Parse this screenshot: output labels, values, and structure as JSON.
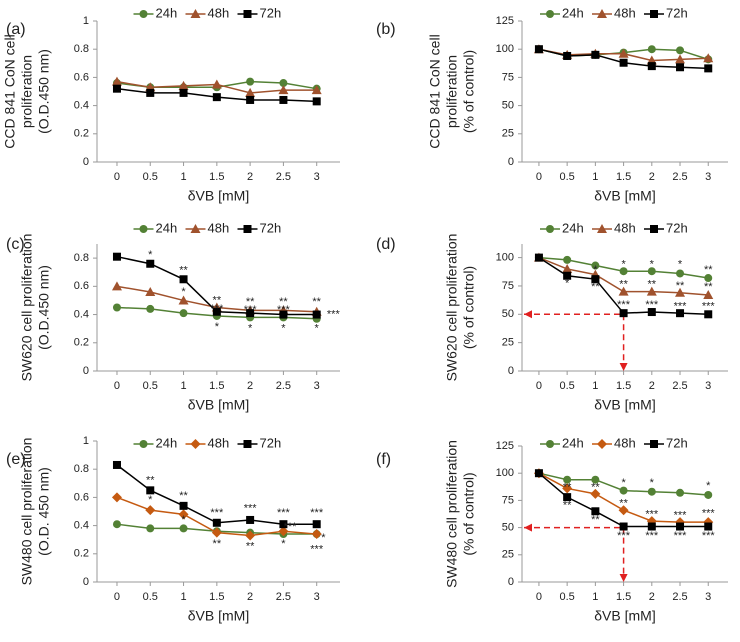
{
  "chart_data": [
    {
      "type": "line",
      "panel_label": "(a)",
      "ylabel": [
        "CCD 841 CoN cell",
        "proliferation",
        "(O.D.450 nm)"
      ],
      "xlabel": "δVB [mM]",
      "x": [
        0,
        0.5,
        1,
        1.5,
        2,
        2.5,
        3
      ],
      "xticks": [
        0,
        0.5,
        1,
        1.5,
        2,
        2.5,
        3
      ],
      "xlim": [
        -0.3,
        3.35
      ],
      "ylim": [
        0,
        1
      ],
      "yticks": [
        0,
        0.2,
        0.4,
        0.6,
        0.8,
        1
      ],
      "series": [
        {
          "name": "24h",
          "color": "#538135",
          "marker": "circle",
          "values": [
            0.56,
            0.53,
            0.53,
            0.53,
            0.57,
            0.56,
            0.52
          ]
        },
        {
          "name": "48h",
          "color": "#a0522d",
          "marker": "triangle",
          "values": [
            0.57,
            0.53,
            0.54,
            0.55,
            0.49,
            0.51,
            0.51
          ]
        },
        {
          "name": "72h",
          "color": "#000000",
          "marker": "square",
          "values": [
            0.52,
            0.49,
            0.49,
            0.46,
            0.44,
            0.44,
            0.43
          ]
        }
      ]
    },
    {
      "type": "line",
      "panel_label": "(b)",
      "ylabel": [
        "CCD 841 CoN cell",
        "proliferation",
        "(% of control)"
      ],
      "xlabel": "δVB [mM]",
      "x": [
        0,
        0.5,
        1,
        1.5,
        2,
        2.5,
        3
      ],
      "xticks": [
        0,
        0.5,
        1,
        1.5,
        2,
        2.5,
        3
      ],
      "xlim": [
        -0.3,
        3.35
      ],
      "ylim": [
        0,
        125
      ],
      "yticks": [
        0,
        25,
        50,
        75,
        100,
        125
      ],
      "series": [
        {
          "name": "24h",
          "color": "#538135",
          "marker": "circle",
          "values": [
            100,
            94,
            95,
            97,
            100,
            99,
            91
          ]
        },
        {
          "name": "48h",
          "color": "#a0522d",
          "marker": "triangle",
          "values": [
            100,
            95,
            96,
            96,
            90,
            91,
            92
          ]
        },
        {
          "name": "72h",
          "color": "#000000",
          "marker": "square",
          "values": [
            100,
            94,
            95,
            88,
            85,
            84,
            83
          ]
        }
      ]
    },
    {
      "type": "line",
      "panel_label": "(c)",
      "ylabel": [
        "SW620 cell proliferation",
        "(O.D.450 nm)"
      ],
      "xlabel": "δVB [mM]",
      "x": [
        0,
        0.5,
        1,
        1.5,
        2,
        2.5,
        3
      ],
      "xticks": [
        0,
        0.5,
        1,
        1.5,
        2,
        2.5,
        3
      ],
      "xlim": [
        -0.3,
        3.35
      ],
      "ylim": [
        0,
        0.9
      ],
      "yticks": [
        0,
        0.2,
        0.4,
        0.6,
        0.8
      ],
      "series": [
        {
          "name": "24h",
          "color": "#538135",
          "marker": "circle",
          "values": [
            0.45,
            0.44,
            0.41,
            0.39,
            0.38,
            0.38,
            0.37
          ]
        },
        {
          "name": "48h",
          "color": "#a0522d",
          "marker": "triangle",
          "values": [
            0.6,
            0.56,
            0.5,
            0.45,
            0.43,
            0.43,
            0.42
          ]
        },
        {
          "name": "72h",
          "color": "#000000",
          "marker": "square",
          "values": [
            0.81,
            0.76,
            0.65,
            0.42,
            0.41,
            0.4,
            0.4
          ]
        }
      ],
      "annotations": [
        {
          "text": "*",
          "x": 0.5,
          "y": 0.82
        },
        {
          "text": "**",
          "x": 1,
          "y": 0.71
        },
        {
          "text": "*",
          "x": 1,
          "y": 0.56
        },
        {
          "text": "**",
          "x": 1.5,
          "y": 0.5
        },
        {
          "text": "***",
          "x": 1.5,
          "y": 0.44
        },
        {
          "text": "*",
          "x": 1.5,
          "y": 0.31
        },
        {
          "text": "**",
          "x": 2,
          "y": 0.49
        },
        {
          "text": "***",
          "x": 2,
          "y": 0.43
        },
        {
          "text": "*",
          "x": 2,
          "y": 0.3
        },
        {
          "text": "**",
          "x": 2.5,
          "y": 0.49
        },
        {
          "text": "***",
          "x": 2.5,
          "y": 0.43
        },
        {
          "text": "*",
          "x": 2.5,
          "y": 0.3
        },
        {
          "text": "**",
          "x": 3,
          "y": 0.49
        },
        {
          "text": "***",
          "x": 3.25,
          "y": 0.4
        },
        {
          "text": "*",
          "x": 3,
          "y": 0.3
        }
      ]
    },
    {
      "type": "line",
      "panel_label": "(d)",
      "ylabel": [
        "SW620 cell proliferation",
        "(% of control)"
      ],
      "xlabel": "δVB [mM]",
      "x": [
        0,
        0.5,
        1,
        1.5,
        2,
        2.5,
        3
      ],
      "xticks": [
        0,
        0.5,
        1,
        1.5,
        2,
        2.5,
        3
      ],
      "xlim": [
        -0.3,
        3.35
      ],
      "ylim": [
        0,
        112
      ],
      "yticks": [
        0,
        25,
        50,
        75,
        100
      ],
      "series": [
        {
          "name": "24h",
          "color": "#538135",
          "marker": "circle",
          "values": [
            100,
            98,
            93,
            88,
            88,
            86,
            82
          ]
        },
        {
          "name": "48h",
          "color": "#a0522d",
          "marker": "triangle",
          "values": [
            100,
            90,
            85,
            70,
            70,
            69,
            67
          ]
        },
        {
          "name": "72h",
          "color": "#000000",
          "marker": "square",
          "values": [
            100,
            84,
            81,
            51,
            52,
            51,
            50
          ]
        }
      ],
      "ref_line": {
        "x": 1.5,
        "y": 50,
        "color": "#e02020"
      },
      "annotations": [
        {
          "text": "*",
          "x": 1,
          "y": 89
        },
        {
          "text": "*",
          "x": 0.5,
          "y": 77
        },
        {
          "text": "**",
          "x": 1,
          "y": 74
        },
        {
          "text": "*",
          "x": 1.5,
          "y": 94
        },
        {
          "text": "*",
          "x": 2,
          "y": 94
        },
        {
          "text": "*",
          "x": 2.5,
          "y": 94
        },
        {
          "text": "**",
          "x": 3,
          "y": 89
        },
        {
          "text": "**",
          "x": 1.5,
          "y": 76
        },
        {
          "text": "**",
          "x": 2,
          "y": 76
        },
        {
          "text": "**",
          "x": 2.5,
          "y": 75
        },
        {
          "text": "**",
          "x": 3,
          "y": 74
        },
        {
          "text": "***",
          "x": 1.5,
          "y": 58
        },
        {
          "text": "***",
          "x": 2,
          "y": 58
        },
        {
          "text": "***",
          "x": 2.5,
          "y": 57
        },
        {
          "text": "***",
          "x": 3,
          "y": 57
        }
      ]
    },
    {
      "type": "line",
      "panel_label": "(e)",
      "ylabel": [
        "SW480 cell proliferation",
        "(O.D. 450 nm)"
      ],
      "xlabel": "δVB [mM]",
      "x": [
        0,
        0.5,
        1,
        1.5,
        2,
        2.5,
        3
      ],
      "xticks": [
        0,
        0.5,
        1,
        1.5,
        2,
        2.5,
        3
      ],
      "xlim": [
        -0.3,
        3.35
      ],
      "ylim": [
        0,
        1
      ],
      "yticks": [
        0,
        0.2,
        0.4,
        0.6,
        0.8,
        1
      ],
      "series": [
        {
          "name": "24h",
          "color": "#538135",
          "marker": "circle",
          "values": [
            0.41,
            0.38,
            0.38,
            0.36,
            0.35,
            0.34,
            0.34
          ]
        },
        {
          "name": "48h",
          "color": "#c55a11",
          "marker": "diamond",
          "values": [
            0.6,
            0.51,
            0.48,
            0.35,
            0.33,
            0.36,
            0.34
          ]
        },
        {
          "name": "72h",
          "color": "#000000",
          "marker": "square",
          "values": [
            0.83,
            0.65,
            0.54,
            0.42,
            0.44,
            0.41,
            0.41
          ]
        }
      ],
      "annotations": [
        {
          "text": "**",
          "x": 0.5,
          "y": 0.72
        },
        {
          "text": "*",
          "x": 0.5,
          "y": 0.58
        },
        {
          "text": "**",
          "x": 1,
          "y": 0.61
        },
        {
          "text": "*",
          "x": 1,
          "y": 0.44
        },
        {
          "text": "***",
          "x": 1.5,
          "y": 0.49
        },
        {
          "text": "**",
          "x": 1.5,
          "y": 0.27
        },
        {
          "text": "***",
          "x": 2,
          "y": 0.52
        },
        {
          "text": "**",
          "x": 2,
          "y": 0.25
        },
        {
          "text": "***",
          "x": 2.5,
          "y": 0.49
        },
        {
          "text": "***",
          "x": 2.6,
          "y": 0.39
        },
        {
          "text": "*",
          "x": 2.5,
          "y": 0.27
        },
        {
          "text": "***",
          "x": 3,
          "y": 0.49
        },
        {
          "text": "*",
          "x": 3.1,
          "y": 0.31
        },
        {
          "text": "***",
          "x": 3,
          "y": 0.23
        }
      ]
    },
    {
      "type": "line",
      "panel_label": "(f)",
      "ylabel": [
        "SW480 cell proliferation",
        "(% of control)"
      ],
      "xlabel": "δVB [mM]",
      "x": [
        0,
        0.5,
        1,
        1.5,
        2,
        2.5,
        3
      ],
      "xticks": [
        0,
        0.5,
        1,
        1.5,
        2,
        2.5,
        3
      ],
      "xlim": [
        -0.3,
        3.35
      ],
      "ylim": [
        0,
        125
      ],
      "yticks": [
        0,
        25,
        50,
        75,
        100,
        125
      ],
      "series": [
        {
          "name": "24h",
          "color": "#538135",
          "marker": "circle",
          "values": [
            100,
            94,
            94,
            84,
            83,
            82,
            80
          ]
        },
        {
          "name": "48h",
          "color": "#c55a11",
          "marker": "diamond",
          "values": [
            100,
            86,
            81,
            66,
            56,
            55,
            55
          ]
        },
        {
          "name": "72h",
          "color": "#000000",
          "marker": "square",
          "values": [
            100,
            78,
            65,
            51,
            51,
            51,
            51
          ]
        }
      ],
      "ref_line": {
        "x": 1.5,
        "y": 50,
        "color": "#e02020"
      },
      "annotations": [
        {
          "text": "**",
          "x": 0.5,
          "y": 87
        },
        {
          "text": "**",
          "x": 0.5,
          "y": 70
        },
        {
          "text": "**",
          "x": 1,
          "y": 87
        },
        {
          "text": "**",
          "x": 1,
          "y": 57
        },
        {
          "text": "*",
          "x": 1.5,
          "y": 91
        },
        {
          "text": "**",
          "x": 1.5,
          "y": 72
        },
        {
          "text": "***",
          "x": 1.5,
          "y": 42
        },
        {
          "text": "*",
          "x": 2,
          "y": 91
        },
        {
          "text": "***",
          "x": 2,
          "y": 62
        },
        {
          "text": "***",
          "x": 2,
          "y": 42
        },
        {
          "text": "***",
          "x": 2.5,
          "y": 61
        },
        {
          "text": "***",
          "x": 2.5,
          "y": 42
        },
        {
          "text": "*",
          "x": 3,
          "y": 88
        },
        {
          "text": "***",
          "x": 3,
          "y": 63
        },
        {
          "text": "***",
          "x": 3,
          "y": 42
        }
      ]
    }
  ]
}
